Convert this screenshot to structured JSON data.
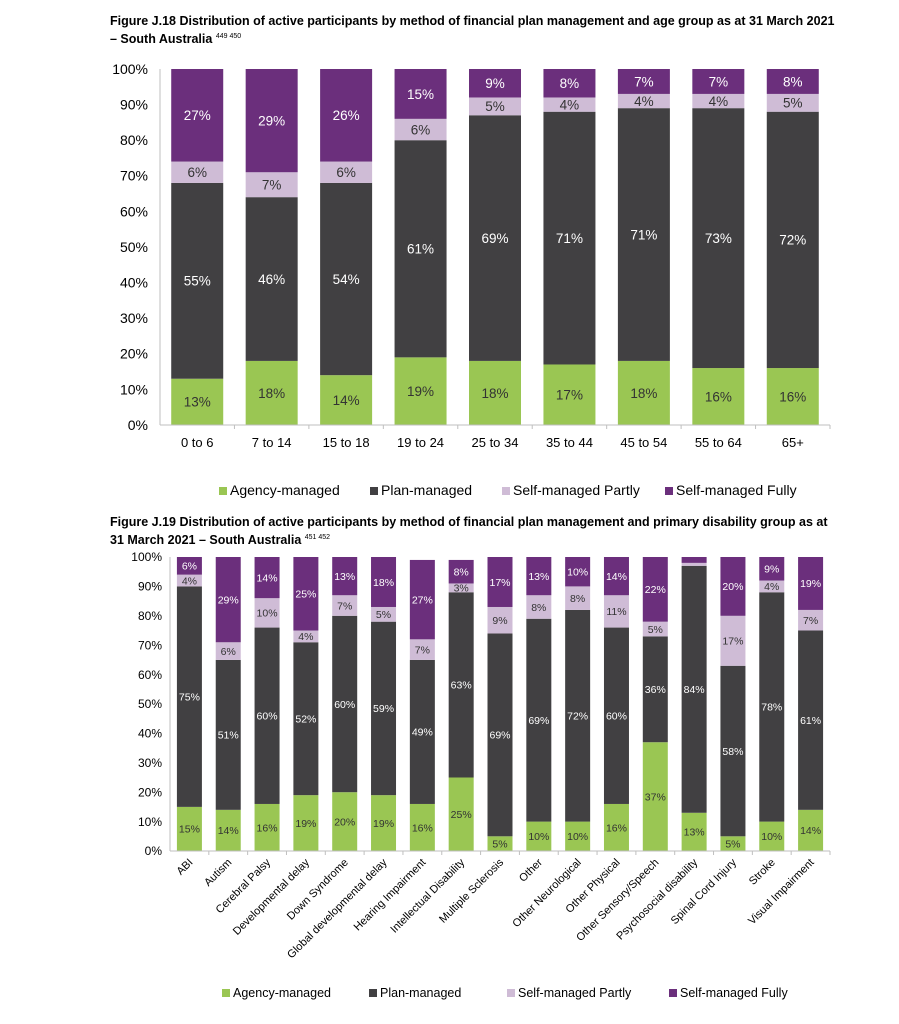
{
  "figure1": {
    "title": "Figure J.18 Distribution of active participants by method of financial plan management and age group as at 31 March 2021 – South Australia",
    "footnote_refs": "449 450"
  },
  "figure2": {
    "title": "Figure J.19 Distribution of active participants by method of financial plan management and primary disability group as at 31 March 2021 – South Australia",
    "footnote_refs": "451 452"
  },
  "colors": {
    "agency": "#9ac653",
    "plan": "#414042",
    "self_partly": "#cfbcd6",
    "self_fully": "#6b2f7c"
  },
  "chart_data": [
    {
      "type": "bar",
      "stacked": true,
      "categories": [
        "0 to 6",
        "7 to 14",
        "15 to 18",
        "19 to 24",
        "25 to 34",
        "35 to 44",
        "45 to 54",
        "55 to 64",
        "65+"
      ],
      "ylim": [
        0,
        100
      ],
      "yticks": [
        "0%",
        "10%",
        "20%",
        "30%",
        "40%",
        "50%",
        "60%",
        "70%",
        "80%",
        "90%",
        "100%"
      ],
      "legend_position": "bottom",
      "series": [
        {
          "name": "Agency-managed",
          "values": [
            13,
            18,
            14,
            19,
            18,
            17,
            18,
            16,
            16
          ],
          "labels": [
            "13%",
            "18%",
            "14%",
            "19%",
            "18%",
            "17%",
            "18%",
            "16%",
            "16%"
          ]
        },
        {
          "name": "Plan-managed",
          "values": [
            55,
            46,
            54,
            61,
            69,
            71,
            71,
            73,
            72
          ],
          "labels": [
            "55%",
            "46%",
            "54%",
            "61%",
            "69%",
            "71%",
            "71%",
            "73%",
            "72%"
          ]
        },
        {
          "name": "Self-managed Partly",
          "values": [
            6,
            7,
            6,
            6,
            5,
            4,
            4,
            4,
            5
          ],
          "labels": [
            "6%",
            "7%",
            "6%",
            "6%",
            "5%",
            "4%",
            "4%",
            "4%",
            "5%"
          ]
        },
        {
          "name": "Self-managed Fully",
          "values": [
            27,
            29,
            26,
            15,
            9,
            8,
            7,
            7,
            8
          ],
          "labels": [
            "27%",
            "29%",
            "26%",
            "15%",
            "9%",
            "8%",
            "7%",
            "7%",
            "8%"
          ]
        }
      ]
    },
    {
      "type": "bar",
      "stacked": true,
      "categories": [
        "ABI",
        "Autism",
        "Cerebral Palsy",
        "Developmental delay",
        "Down Syndrome",
        "Global developmental delay",
        "Hearing Impairment",
        "Intellectual Disability",
        "Multiple Sclerosis",
        "Other",
        "Other Neurological",
        "Other Physical",
        "Other Sensory/Speech",
        "Psychosocial disability",
        "Spinal Cord Injury",
        "Stroke",
        "Visual Impairment"
      ],
      "ylim": [
        0,
        100
      ],
      "yticks": [
        "0%",
        "10%",
        "20%",
        "30%",
        "40%",
        "50%",
        "60%",
        "70%",
        "80%",
        "90%",
        "100%"
      ],
      "legend_position": "bottom",
      "series": [
        {
          "name": "Agency-managed",
          "values": [
            15,
            14,
            16,
            19,
            20,
            19,
            16,
            25,
            5,
            10,
            10,
            16,
            37,
            13,
            5,
            10,
            14
          ],
          "labels": [
            "15%",
            "14%",
            "16%",
            "19%",
            "20%",
            "19%",
            "16%",
            "25%",
            "5%",
            "10%",
            "10%",
            "16%",
            "37%",
            "13%",
            "5%",
            "10%",
            "14%"
          ]
        },
        {
          "name": "Plan-managed",
          "values": [
            75,
            51,
            60,
            52,
            60,
            59,
            49,
            63,
            69,
            69,
            72,
            60,
            36,
            84,
            58,
            78,
            61
          ],
          "labels": [
            "75%",
            "51%",
            "60%",
            "52%",
            "60%",
            "59%",
            "49%",
            "63%",
            "69%",
            "69%",
            "72%",
            "60%",
            "36%",
            "84%",
            "58%",
            "78%",
            "61%"
          ]
        },
        {
          "name": "Self-managed Partly",
          "values": [
            4,
            6,
            10,
            4,
            7,
            5,
            7,
            3,
            9,
            8,
            8,
            11,
            5,
            1,
            17,
            4,
            7
          ],
          "labels": [
            "4%",
            "6%",
            "10%",
            "4%",
            "7%",
            "5%",
            "7%",
            "3%",
            "9%",
            "8%",
            "8%",
            "11%",
            "5%",
            "1%",
            "17%",
            "4%",
            "7%"
          ]
        },
        {
          "name": "Self-managed Fully",
          "values": [
            6,
            29,
            14,
            25,
            13,
            18,
            27,
            8,
            17,
            13,
            10,
            14,
            22,
            2,
            20,
            9,
            19
          ],
          "labels": [
            "6%",
            "29%",
            "14%",
            "25%",
            "13%",
            "18%",
            "27%",
            "8%",
            "17%",
            "13%",
            "10%",
            "14%",
            "22%",
            "2%",
            "20%",
            "9%",
            "19%"
          ]
        }
      ]
    }
  ]
}
